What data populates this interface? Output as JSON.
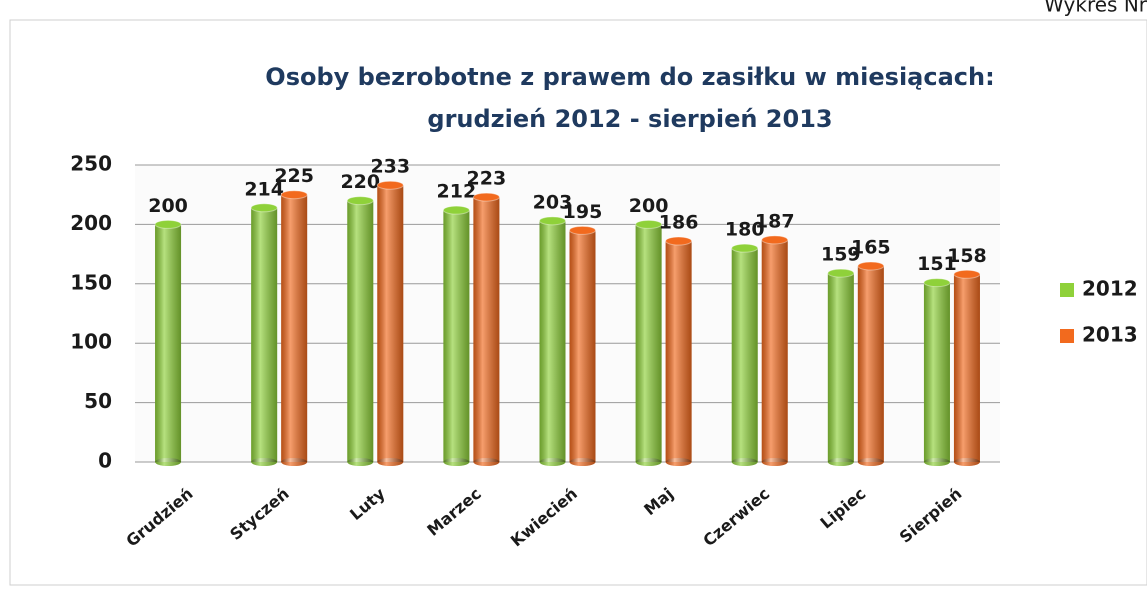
{
  "chart_data": {
    "type": "bar",
    "annotation": "Wykres Nr",
    "title": "Osoby bezrobotne z prawem do zasiłku w miesiącach:",
    "subtitle": "grudzień 2012 - sierpień 2013",
    "categories": [
      "Grudzień",
      "Styczeń",
      "Luty",
      "Marzec",
      "Kwiecień",
      "Maj",
      "Czerwiec",
      "Lipiec",
      "Sierpień"
    ],
    "series": [
      {
        "name": "2012",
        "color": "#8fd13a",
        "values": [
          200,
          214,
          220,
          212,
          203,
          200,
          180,
          159,
          151
        ]
      },
      {
        "name": "2013",
        "color": "#f26a1e",
        "values": [
          null,
          225,
          233,
          223,
          195,
          186,
          187,
          165,
          158
        ]
      }
    ],
    "ylim": [
      0,
      250
    ],
    "yticks": [
      0,
      50,
      100,
      150,
      200,
      250
    ],
    "grid": true,
    "legend": "right"
  }
}
